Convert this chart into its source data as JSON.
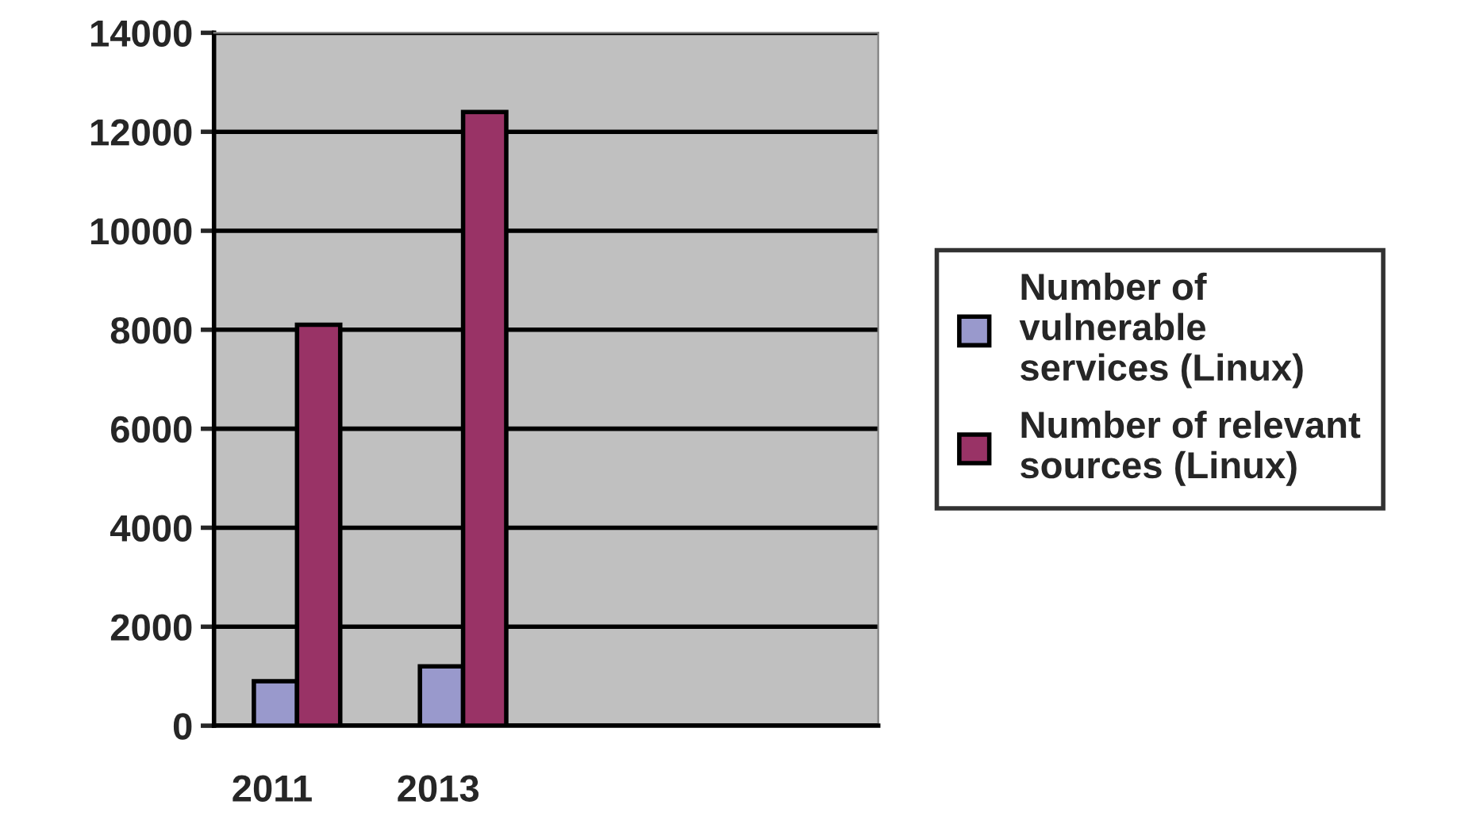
{
  "chart_data": {
    "type": "bar",
    "categories": [
      "2011",
      "2013",
      null,
      null
    ],
    "series": [
      {
        "name": "Number of vulnerable services (Linux)",
        "color": "#9999cc",
        "values": [
          900,
          1200,
          null,
          null
        ]
      },
      {
        "name": "Number of relevant sources (Linux)",
        "color": "#993366",
        "values": [
          8100,
          12400,
          null,
          null
        ]
      }
    ],
    "ylim": [
      0,
      14000
    ],
    "yticks": [
      0,
      2000,
      4000,
      6000,
      8000,
      10000,
      12000,
      14000
    ],
    "grid": "y",
    "legend": "right"
  }
}
